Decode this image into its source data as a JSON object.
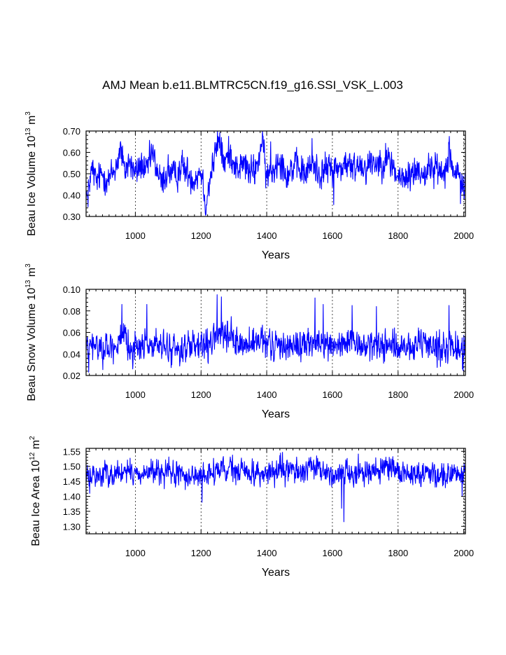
{
  "title": "AMJ Mean b.e11.BLMTRC5CN.f19_g16.SSI_VSK_L.003",
  "series_color": "#0000ff",
  "chart_data": [
    {
      "type": "line",
      "ylabel": {
        "text": "Beau Ice Volume 10",
        "exp": "13",
        "unit": " m",
        "unit_exp": "3"
      },
      "xlabel": "Years",
      "xlim": [
        850,
        2005
      ],
      "ylim": [
        0.3,
        0.7
      ],
      "xticks": [
        1000,
        1200,
        1400,
        1600,
        1800,
        2000
      ],
      "xtick_labels": [
        "1000",
        "1200",
        "1400",
        "1600",
        "1800",
        "2000"
      ],
      "yticks": [
        0.3,
        0.4,
        0.5,
        0.6,
        0.7
      ],
      "ytick_labels": [
        "0.30",
        "0.40",
        "0.50",
        "0.60",
        "0.70"
      ],
      "series": [
        {
          "name": "Beau Ice Volume",
          "x_start": 850,
          "x_step": 1,
          "keypoints": [
            [
              850,
              0.44
            ],
            [
              855,
              0.36
            ],
            [
              860,
              0.47
            ],
            [
              870,
              0.52
            ],
            [
              880,
              0.46
            ],
            [
              900,
              0.5
            ],
            [
              920,
              0.47
            ],
            [
              940,
              0.53
            ],
            [
              955,
              0.62
            ],
            [
              965,
              0.5
            ],
            [
              980,
              0.56
            ],
            [
              1000,
              0.5
            ],
            [
              1020,
              0.55
            ],
            [
              1030,
              0.49
            ],
            [
              1050,
              0.6
            ],
            [
              1080,
              0.45
            ],
            [
              1100,
              0.52
            ],
            [
              1120,
              0.48
            ],
            [
              1140,
              0.54
            ],
            [
              1160,
              0.5
            ],
            [
              1180,
              0.48
            ],
            [
              1200,
              0.52
            ],
            [
              1215,
              0.36
            ],
            [
              1230,
              0.5
            ],
            [
              1248,
              0.62
            ],
            [
              1255,
              0.66
            ],
            [
              1270,
              0.55
            ],
            [
              1290,
              0.6
            ],
            [
              1310,
              0.52
            ],
            [
              1330,
              0.55
            ],
            [
              1350,
              0.5
            ],
            [
              1370,
              0.53
            ],
            [
              1385,
              0.65
            ],
            [
              1400,
              0.48
            ],
            [
              1420,
              0.52
            ],
            [
              1440,
              0.58
            ],
            [
              1460,
              0.5
            ],
            [
              1480,
              0.53
            ],
            [
              1500,
              0.52
            ],
            [
              1520,
              0.5
            ],
            [
              1540,
              0.55
            ],
            [
              1560,
              0.5
            ],
            [
              1580,
              0.52
            ],
            [
              1600,
              0.53
            ],
            [
              1620,
              0.52
            ],
            [
              1640,
              0.55
            ],
            [
              1660,
              0.52
            ],
            [
              1680,
              0.55
            ],
            [
              1700,
              0.53
            ],
            [
              1720,
              0.56
            ],
            [
              1740,
              0.55
            ],
            [
              1760,
              0.57
            ],
            [
              1780,
              0.55
            ],
            [
              1800,
              0.48
            ],
            [
              1820,
              0.47
            ],
            [
              1840,
              0.5
            ],
            [
              1860,
              0.52
            ],
            [
              1880,
              0.5
            ],
            [
              1900,
              0.53
            ],
            [
              1920,
              0.52
            ],
            [
              1940,
              0.5
            ],
            [
              1955,
              0.62
            ],
            [
              1970,
              0.5
            ],
            [
              1990,
              0.47
            ],
            [
              2005,
              0.45
            ]
          ],
          "noise": 0.045,
          "notable_points": [
            [
              961,
              0.63
            ],
            [
              1252,
              0.675
            ],
            [
              1262,
              0.67
            ],
            [
              1389,
              0.675
            ],
            [
              1412,
              0.65
            ],
            [
              1538,
              0.665
            ],
            [
              1604,
              0.355
            ],
            [
              1956,
              0.675
            ],
            [
              1990,
              0.36
            ],
            [
              856,
              0.345
            ]
          ]
        }
      ]
    },
    {
      "type": "line",
      "ylabel": {
        "text": "Beau Snow Volume 10",
        "exp": "13",
        "unit": " m",
        "unit_exp": "3"
      },
      "xlabel": "Years",
      "xlim": [
        850,
        2005
      ],
      "ylim": [
        0.02,
        0.1
      ],
      "xticks": [
        1000,
        1200,
        1400,
        1600,
        1800,
        2000
      ],
      "xtick_labels": [
        "1000",
        "1200",
        "1400",
        "1600",
        "1800",
        "2000"
      ],
      "yticks": [
        0.02,
        0.04,
        0.06,
        0.08,
        0.1
      ],
      "ytick_labels": [
        "0.02",
        "0.04",
        "0.06",
        "0.08",
        "0.10"
      ],
      "series": [
        {
          "name": "Beau Snow Volume",
          "x_start": 850,
          "x_step": 1,
          "keypoints": [
            [
              850,
              0.045
            ],
            [
              880,
              0.047
            ],
            [
              920,
              0.045
            ],
            [
              950,
              0.052
            ],
            [
              965,
              0.05
            ],
            [
              1000,
              0.046
            ],
            [
              1040,
              0.05
            ],
            [
              1080,
              0.046
            ],
            [
              1120,
              0.044
            ],
            [
              1160,
              0.046
            ],
            [
              1200,
              0.045
            ],
            [
              1230,
              0.048
            ],
            [
              1250,
              0.06
            ],
            [
              1270,
              0.056
            ],
            [
              1300,
              0.052
            ],
            [
              1340,
              0.048
            ],
            [
              1380,
              0.05
            ],
            [
              1420,
              0.047
            ],
            [
              1460,
              0.049
            ],
            [
              1500,
              0.048
            ],
            [
              1540,
              0.05
            ],
            [
              1580,
              0.048
            ],
            [
              1620,
              0.049
            ],
            [
              1660,
              0.048
            ],
            [
              1700,
              0.047
            ],
            [
              1740,
              0.049
            ],
            [
              1780,
              0.048
            ],
            [
              1820,
              0.044
            ],
            [
              1860,
              0.046
            ],
            [
              1900,
              0.048
            ],
            [
              1940,
              0.047
            ],
            [
              1980,
              0.045
            ],
            [
              2005,
              0.046
            ]
          ],
          "noise": 0.0085,
          "notable_points": [
            [
              959,
              0.086
            ],
            [
              1035,
              0.086
            ],
            [
              1249,
              0.095
            ],
            [
              1262,
              0.093
            ],
            [
              1547,
              0.092
            ],
            [
              1572,
              0.086
            ],
            [
              1660,
              0.085
            ],
            [
              1734,
              0.084
            ],
            [
              1955,
              0.085
            ],
            [
              1996,
              0.026
            ],
            [
              858,
              0.023
            ]
          ]
        }
      ]
    },
    {
      "type": "line",
      "ylabel": {
        "text": "Beau Ice Area 10",
        "exp": "12",
        "unit": " m",
        "unit_exp": "2"
      },
      "xlabel": "Years",
      "xlim": [
        850,
        2005
      ],
      "ylim": [
        1.275,
        1.56
      ],
      "xticks": [
        1000,
        1200,
        1400,
        1600,
        1800,
        2000
      ],
      "xtick_labels": [
        "1000",
        "1200",
        "1400",
        "1600",
        "1800",
        "2000"
      ],
      "yticks": [
        1.3,
        1.35,
        1.4,
        1.45,
        1.5,
        1.55
      ],
      "ytick_labels": [
        "1.30",
        "1.35",
        "1.40",
        "1.45",
        "1.50",
        "1.55"
      ],
      "series": [
        {
          "name": "Beau Ice Area",
          "x_start": 850,
          "x_step": 1,
          "keypoints": [
            [
              850,
              1.46
            ],
            [
              900,
              1.475
            ],
            [
              950,
              1.48
            ],
            [
              1000,
              1.475
            ],
            [
              1050,
              1.48
            ],
            [
              1100,
              1.475
            ],
            [
              1150,
              1.47
            ],
            [
              1200,
              1.465
            ],
            [
              1250,
              1.485
            ],
            [
              1300,
              1.485
            ],
            [
              1350,
              1.48
            ],
            [
              1400,
              1.475
            ],
            [
              1450,
              1.485
            ],
            [
              1500,
              1.485
            ],
            [
              1550,
              1.49
            ],
            [
              1600,
              1.475
            ],
            [
              1650,
              1.48
            ],
            [
              1700,
              1.485
            ],
            [
              1750,
              1.49
            ],
            [
              1800,
              1.48
            ],
            [
              1850,
              1.475
            ],
            [
              1900,
              1.48
            ],
            [
              1950,
              1.475
            ],
            [
              2005,
              1.47
            ]
          ],
          "noise": 0.025,
          "notable_points": [
            [
              1203,
              1.38
            ],
            [
              1552,
              1.535
            ],
            [
              1628,
              1.36
            ],
            [
              1635,
              1.315
            ],
            [
              1760,
              1.52
            ],
            [
              1995,
              1.4
            ]
          ]
        }
      ]
    }
  ]
}
